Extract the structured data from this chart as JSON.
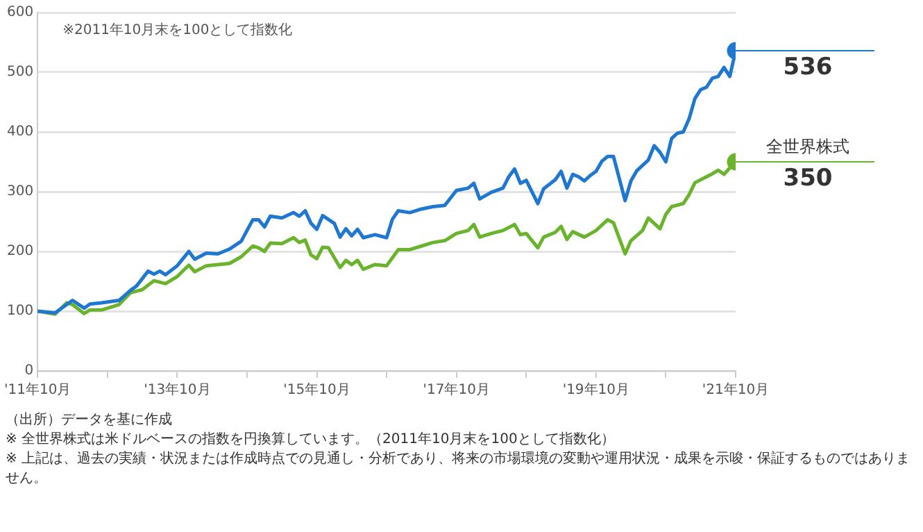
{
  "chart_data": {
    "type": "line",
    "xlim": [
      "2011-10",
      "2021-10"
    ],
    "xticks": [
      {
        "value": "2011-10",
        "label": "'11年10月"
      },
      {
        "value": "2012-10",
        "label": null
      },
      {
        "value": "2013-10",
        "label": "'13年10月"
      },
      {
        "value": "2014-10",
        "label": null
      },
      {
        "value": "2015-10",
        "label": "'15年10月"
      },
      {
        "value": "2016-10",
        "label": null
      },
      {
        "value": "2017-10",
        "label": "'17年10月"
      },
      {
        "value": "2018-10",
        "label": null
      },
      {
        "value": "2019-10",
        "label": "'19年10月"
      },
      {
        "value": "2020-10",
        "label": null
      },
      {
        "value": "2021-10",
        "label": "'21年10月"
      }
    ],
    "ylim": [
      0,
      600
    ],
    "yticks": [
      0,
      100,
      200,
      300,
      400,
      500,
      600
    ],
    "grid": "y",
    "legend": false,
    "series": [
      {
        "color": "#1f77d0",
        "x": [
          "2011-10",
          "2012-01",
          "2012-04",
          "2012-06",
          "2012-07",
          "2012-09",
          "2012-12",
          "2013-02",
          "2013-03",
          "2013-05",
          "2013-06",
          "2013-07",
          "2013-08",
          "2013-10",
          "2013-12",
          "2014-01",
          "2014-03",
          "2014-05",
          "2014-07",
          "2014-09",
          "2014-11",
          "2014-12",
          "2015-01",
          "2015-02",
          "2015-04",
          "2015-06",
          "2015-07",
          "2015-08",
          "2015-09",
          "2015-10",
          "2015-11",
          "2016-01",
          "2016-02",
          "2016-03",
          "2016-04",
          "2016-05",
          "2016-06",
          "2016-08",
          "2016-10",
          "2016-11",
          "2016-12",
          "2017-02",
          "2017-04",
          "2017-06",
          "2017-08",
          "2017-10",
          "2017-12",
          "2018-01",
          "2018-02",
          "2018-04",
          "2018-06",
          "2018-07",
          "2018-08",
          "2018-09",
          "2018-10",
          "2018-12",
          "2019-01",
          "2019-03",
          "2019-04",
          "2019-05",
          "2019-06",
          "2019-07",
          "2019-08",
          "2019-09",
          "2019-10",
          "2019-11",
          "2019-12",
          "2020-01",
          "2020-03",
          "2020-04",
          "2020-05",
          "2020-06",
          "2020-07",
          "2020-08",
          "2020-09",
          "2020-10",
          "2020-11",
          "2020-12",
          "2021-01",
          "2021-02",
          "2021-03",
          "2021-04",
          "2021-05",
          "2021-06",
          "2021-07",
          "2021-08",
          "2021-09",
          "2021-10"
        ],
        "values": [
          100,
          97,
          118,
          105,
          112,
          114,
          118,
          135,
          142,
          167,
          162,
          167,
          161,
          176,
          200,
          187,
          197,
          196,
          204,
          217,
          253,
          253,
          241,
          259,
          256,
          265,
          259,
          268,
          247,
          237,
          260,
          247,
          224,
          238,
          226,
          237,
          223,
          228,
          223,
          254,
          268,
          265,
          271,
          275,
          277,
          302,
          306,
          314,
          288,
          299,
          306,
          325,
          338,
          314,
          319,
          280,
          305,
          320,
          334,
          306,
          329,
          325,
          318,
          327,
          334,
          351,
          359,
          359,
          285,
          318,
          335,
          344,
          353,
          377,
          366,
          350,
          389,
          398,
          400,
          422,
          456,
          471,
          475,
          490,
          493,
          508,
          493,
          536
        ],
        "value_labels": [
          null,
          null,
          null,
          null,
          null,
          null,
          null,
          null,
          null,
          null,
          null,
          null,
          null,
          null,
          null,
          null,
          null,
          null,
          null,
          null,
          null,
          null,
          null,
          null,
          null,
          null,
          null,
          null,
          null,
          null,
          null,
          null,
          null,
          null,
          null,
          null,
          null,
          null,
          null,
          null,
          null,
          null,
          null,
          null,
          null,
          null,
          null,
          null,
          null,
          null,
          null,
          null,
          null,
          null,
          null,
          null,
          null,
          null,
          null,
          null,
          null,
          null,
          null,
          null,
          null,
          null,
          null,
          null,
          null,
          null,
          null,
          null,
          null,
          null,
          null,
          null,
          null,
          null,
          null,
          null,
          null,
          null,
          null,
          null,
          null,
          null,
          null,
          "536"
        ]
      },
      {
        "name": "全世界株式",
        "color": "#6ab42d",
        "x": [
          "2011-10",
          "2012-01",
          "2012-03",
          "2012-04",
          "2012-06",
          "2012-07",
          "2012-09",
          "2012-12",
          "2013-02",
          "2013-04",
          "2013-06",
          "2013-08",
          "2013-10",
          "2013-12",
          "2014-01",
          "2014-03",
          "2014-07",
          "2014-09",
          "2014-11",
          "2014-12",
          "2015-01",
          "2015-02",
          "2015-04",
          "2015-06",
          "2015-07",
          "2015-08",
          "2015-09",
          "2015-10",
          "2015-11",
          "2015-12",
          "2016-02",
          "2016-03",
          "2016-04",
          "2016-05",
          "2016-06",
          "2016-08",
          "2016-10",
          "2016-12",
          "2017-02",
          "2017-04",
          "2017-06",
          "2017-08",
          "2017-10",
          "2017-12",
          "2018-01",
          "2018-02",
          "2018-04",
          "2018-06",
          "2018-08",
          "2018-09",
          "2018-10",
          "2018-12",
          "2019-01",
          "2019-03",
          "2019-04",
          "2019-05",
          "2019-06",
          "2019-08",
          "2019-10",
          "2019-12",
          "2020-01",
          "2020-03",
          "2020-04",
          "2020-06",
          "2020-07",
          "2020-08",
          "2020-09",
          "2020-10",
          "2020-11",
          "2021-01",
          "2021-02",
          "2021-03",
          "2021-05",
          "2021-06",
          "2021-07",
          "2021-08",
          "2021-09",
          "2021-10"
        ],
        "values": [
          100,
          95,
          114,
          111,
          96,
          102,
          102,
          111,
          131,
          136,
          151,
          146,
          158,
          177,
          166,
          176,
          180,
          191,
          209,
          206,
          200,
          214,
          213,
          223,
          215,
          219,
          194,
          188,
          207,
          206,
          173,
          185,
          178,
          185,
          170,
          178,
          176,
          203,
          203,
          209,
          215,
          218,
          230,
          235,
          245,
          224,
          230,
          235,
          245,
          228,
          230,
          206,
          224,
          232,
          242,
          220,
          233,
          224,
          235,
          253,
          248,
          196,
          218,
          235,
          256,
          247,
          238,
          262,
          275,
          280,
          295,
          315,
          325,
          330,
          336,
          329,
          340,
          350
        ],
        "value_labels": [
          null,
          null,
          null,
          null,
          null,
          null,
          null,
          null,
          null,
          null,
          null,
          null,
          null,
          null,
          null,
          null,
          null,
          null,
          null,
          null,
          null,
          null,
          null,
          null,
          null,
          null,
          null,
          null,
          null,
          null,
          null,
          null,
          null,
          null,
          null,
          null,
          null,
          null,
          null,
          null,
          null,
          null,
          null,
          null,
          null,
          null,
          null,
          null,
          null,
          null,
          null,
          null,
          null,
          null,
          null,
          null,
          null,
          null,
          null,
          null,
          null,
          null,
          null,
          null,
          null,
          null,
          null,
          null,
          null,
          null,
          null,
          null,
          null,
          null,
          null,
          null,
          null,
          "350"
        ]
      }
    ],
    "annotations": [
      "※2011年10月末を100として指数化",
      "（出所）データを基に作成",
      "※ 全世界株式は米ドルベースの指数を円換算しています。（2011年10月末を100として指数化）",
      "※ 上記は、過去の実績・状況または作成時点での見通し・分析であり、将来の市場環境の変動や運用状況・成果を示唆・保証するものではありません。"
    ]
  }
}
